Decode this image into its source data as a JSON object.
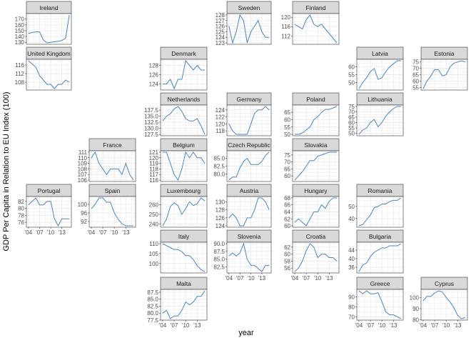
{
  "chart_data": {
    "type": "line",
    "layout": "geofacet small multiples, free y scales",
    "ylabel": "GDP Per Capita in Relation to EU Index (100)",
    "xlabel": "year",
    "x": [
      2004,
      2005,
      2006,
      2007,
      2008,
      2009,
      2010,
      2011,
      2012,
      2013,
      2014,
      2015
    ],
    "x_ticks": [
      2004,
      2007,
      2010,
      2013
    ],
    "x_tick_labels": [
      "'04",
      "'07",
      "'10",
      "'13"
    ],
    "grid": true,
    "colors": {
      "line": "#4a86c0",
      "strip": "#d9d9d9",
      "grid": "#ebebeb",
      "border": "#333333"
    },
    "panels": [
      {
        "name": "Ireland",
        "row": 1,
        "col": 1,
        "yticks": [
          130,
          140,
          150,
          160,
          170
        ],
        "values": [
          145,
          147,
          148,
          148,
          134,
          129,
          130,
          131,
          132,
          133,
          137,
          177
        ]
      },
      {
        "name": "Sweden",
        "row": 1,
        "col": 4,
        "yticks": [
          123,
          124,
          125,
          126,
          127,
          128
        ],
        "values": [
          126,
          123,
          125,
          128,
          127,
          123,
          125,
          126,
          127,
          125,
          124,
          124
        ]
      },
      {
        "name": "Finland",
        "row": 1,
        "col": 5,
        "yticks": [
          112,
          116,
          120
        ],
        "values": [
          117,
          116,
          115,
          119,
          121,
          117,
          116,
          117,
          115,
          113,
          111,
          109
        ]
      },
      {
        "name": "United Kingdom",
        "row": 2,
        "col": 1,
        "yticks": [
          108,
          112,
          116
        ],
        "values": [
          118,
          116.5,
          115,
          111,
          109,
          107,
          107,
          105,
          107,
          107,
          109,
          108
        ]
      },
      {
        "name": "Denmark",
        "row": 2,
        "col": 3,
        "yticks": [
          124,
          126,
          128
        ],
        "values": [
          124,
          124,
          125,
          123,
          125,
          125,
          129,
          128,
          127,
          128,
          127,
          127
        ]
      },
      {
        "name": "Latvia",
        "row": 2,
        "col": 6,
        "yticks": [
          50,
          55,
          60
        ],
        "values": [
          46,
          50,
          53,
          57,
          59,
          52,
          53,
          57,
          60,
          62,
          64,
          64
        ]
      },
      {
        "name": "Estonia",
        "row": 2,
        "col": 7,
        "yticks": [
          55,
          60,
          65,
          70,
          75
        ],
        "values": [
          54,
          60,
          64,
          69,
          69,
          64,
          65,
          71,
          74,
          75,
          76,
          75
        ]
      },
      {
        "name": "Netherlands",
        "row": 3,
        "col": 3,
        "yticks": [
          127.5,
          130.0,
          132.5,
          135.0,
          137.5
        ],
        "values": [
          133,
          135,
          136,
          138,
          139,
          137,
          134,
          133,
          133,
          134,
          131,
          127.5
        ]
      },
      {
        "name": "Germany",
        "row": 3,
        "col": 4,
        "yticks": [
          118,
          120,
          122,
          124
        ],
        "values": [
          120,
          118,
          117,
          117,
          117,
          117,
          120,
          123,
          124,
          124,
          125,
          124
        ]
      },
      {
        "name": "Poland",
        "row": 3,
        "col": 5,
        "yticks": [
          50,
          55,
          60,
          65
        ],
        "values": [
          50,
          50,
          51,
          53,
          55,
          60,
          62,
          65,
          67,
          67,
          68,
          69
        ]
      },
      {
        "name": "Lithuania",
        "row": 3,
        "col": 6,
        "yticks": [
          50,
          55,
          60,
          65,
          70,
          75
        ],
        "values": [
          49,
          53,
          55,
          60,
          63,
          56,
          60,
          66,
          70,
          73,
          75,
          75
        ]
      },
      {
        "name": "France",
        "row": 4,
        "col": 2,
        "yticks": [
          106,
          107,
          108,
          109,
          110,
          111
        ],
        "values": [
          110,
          111,
          109,
          108,
          107,
          108,
          108,
          108,
          107,
          109,
          107,
          106
        ]
      },
      {
        "name": "Belgium",
        "row": 4,
        "col": 3,
        "yticks": [
          116,
          117,
          118,
          119,
          120,
          121
        ],
        "values": [
          121,
          121,
          119,
          117,
          116,
          118,
          121,
          120,
          121,
          120,
          120,
          119
        ]
      },
      {
        "name": "Czech Republic",
        "row": 4,
        "col": 4,
        "yticks": [
          80.0,
          82.5,
          85.0
        ],
        "values": [
          78,
          79,
          79,
          82,
          84,
          85,
          83,
          83,
          83,
          84,
          86,
          87
        ]
      },
      {
        "name": "Slovakia",
        "row": 4,
        "col": 5,
        "yticks": [
          60,
          65,
          70,
          75
        ],
        "values": [
          57,
          60,
          63,
          67,
          71,
          71,
          74,
          75,
          76,
          77,
          77,
          77
        ]
      },
      {
        "name": "Portugal",
        "row": 5,
        "col": 1,
        "yticks": [
          76,
          78,
          80,
          82
        ],
        "values": [
          81,
          82,
          83,
          81,
          81,
          82,
          82,
          77,
          75,
          77,
          77,
          77
        ]
      },
      {
        "name": "Spain",
        "row": 5,
        "col": 2,
        "yticks": [
          92,
          96,
          100
        ],
        "values": [
          98,
          100,
          103,
          103,
          101,
          101,
          96,
          93,
          91,
          90,
          90,
          90
        ]
      },
      {
        "name": "Luxembourg",
        "row": 5,
        "col": 3,
        "yticks": [
          240,
          250,
          260
        ],
        "values": [
          238,
          245,
          258,
          262,
          259,
          250,
          256,
          263,
          259,
          261,
          267,
          264
        ]
      },
      {
        "name": "Austria",
        "row": 5,
        "col": 4,
        "yticks": [
          124,
          126,
          128,
          130
        ],
        "values": [
          126,
          127,
          126,
          124,
          124,
          126,
          126,
          128,
          131,
          131,
          130,
          128
        ]
      },
      {
        "name": "Hungary",
        "row": 5,
        "col": 5,
        "yticks": [
          60,
          62,
          64,
          66,
          68
        ],
        "values": [
          61,
          62,
          61,
          60,
          62,
          64,
          64,
          66,
          65,
          67,
          68,
          68
        ]
      },
      {
        "name": "Romania",
        "row": 5,
        "col": 6,
        "yticks": [
          40,
          50
        ],
        "values": [
          34,
          35,
          39,
          43,
          49,
          50,
          52,
          52,
          54,
          55,
          55,
          57
        ]
      },
      {
        "name": "Italy",
        "row": 6,
        "col": 3,
        "yticks": [
          100,
          105,
          110
        ],
        "values": [
          110,
          109,
          108,
          107,
          107,
          106,
          104,
          104,
          102,
          99,
          97,
          96
        ]
      },
      {
        "name": "Slovenia",
        "row": 6,
        "col": 4,
        "yticks": [
          82.5,
          85.0,
          87.5,
          90.0
        ],
        "values": [
          86,
          87,
          86,
          87,
          90,
          85,
          83,
          83,
          82,
          81,
          83,
          83
        ]
      },
      {
        "name": "Croatia",
        "row": 6,
        "col": 5,
        "yticks": [
          56,
          58,
          60,
          62
        ],
        "values": [
          55,
          56,
          58,
          61,
          63,
          62,
          59,
          60,
          60,
          59,
          59,
          58
        ]
      },
      {
        "name": "Bulgaria",
        "row": 6,
        "col": 6,
        "yticks": [
          36,
          40,
          44
        ],
        "values": [
          34,
          37,
          38,
          41,
          43,
          44,
          45,
          45,
          46,
          46,
          46,
          47
        ]
      },
      {
        "name": "Malta",
        "row": 7,
        "col": 3,
        "yticks": [
          77.5,
          80.0,
          82.5,
          85.0,
          87.5
        ],
        "values": [
          80,
          81,
          78,
          79,
          79,
          81,
          84,
          83,
          84,
          86,
          86,
          88
        ]
      },
      {
        "name": "Greece",
        "row": 7,
        "col": 6,
        "yticks": [
          70,
          80,
          90
        ],
        "values": [
          96,
          93,
          96,
          93,
          93,
          94,
          85,
          75,
          72,
          72,
          70,
          68
        ]
      },
      {
        "name": "Cyprus",
        "row": 7,
        "col": 7,
        "yticks": [
          80,
          90,
          100
        ],
        "values": [
          97,
          101,
          101,
          104,
          106,
          105,
          100,
          96,
          91,
          84,
          81,
          82
        ]
      }
    ]
  }
}
